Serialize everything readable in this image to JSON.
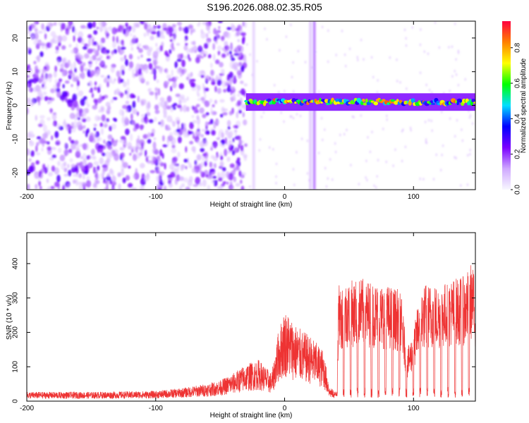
{
  "title": "S196.2026.088.02.35.R05",
  "chart_data": [
    {
      "type": "heatmap",
      "xlabel": "Height of straight line (km)",
      "ylabel": "Frequency (Hz)",
      "xlim": [
        -200,
        148
      ],
      "ylim": [
        -25,
        25
      ],
      "xticks": [
        -200,
        -100,
        0,
        100
      ],
      "yticks": [
        -20,
        -10,
        0,
        10,
        20
      ],
      "colorbar": {
        "label": "Normalized spectral amplitude",
        "range": [
          0,
          0.95
        ],
        "ticks": [
          0.0,
          0.2,
          0.4,
          0.6,
          0.8
        ],
        "colormap": [
          "#f8f8ff",
          "#cfa8ff",
          "#7a00ff",
          "#0000ff",
          "#00e0ff",
          "#00ff00",
          "#ffff00",
          "#ff8000",
          "#ff0040"
        ]
      },
      "regions": [
        {
          "x_range": [
            -200,
            -30
          ],
          "description_level": 0.15
        },
        {
          "x_range": [
            -30,
            148
          ],
          "ridge_frequency_hz": 1,
          "ridge_peak_amplitude": 0.9
        }
      ]
    },
    {
      "type": "line",
      "xlabel": "Height of straight line (km)",
      "ylabel": "SNR (10 * v/v)",
      "xlim": [
        -200,
        148
      ],
      "ylim": [
        0,
        490
      ],
      "xticks": [
        -200,
        -100,
        0,
        100
      ],
      "yticks": [
        0,
        100,
        200,
        300,
        400
      ],
      "color": "#ee3333",
      "envelope": {
        "x": [
          -200,
          -150,
          -100,
          -80,
          -60,
          -50,
          -40,
          -30,
          -20,
          -10,
          -5,
          0,
          5,
          10,
          20,
          30,
          35,
          40,
          42,
          50,
          60,
          70,
          80,
          90,
          95,
          100,
          105,
          110,
          120,
          130,
          140,
          145,
          148
        ],
        "y": [
          20,
          20,
          22,
          28,
          38,
          45,
          60,
          80,
          90,
          60,
          150,
          200,
          180,
          160,
          140,
          110,
          30,
          20,
          250,
          260,
          265,
          255,
          250,
          240,
          110,
          150,
          240,
          255,
          250,
          265,
          270,
          300,
          260
        ]
      }
    }
  ]
}
